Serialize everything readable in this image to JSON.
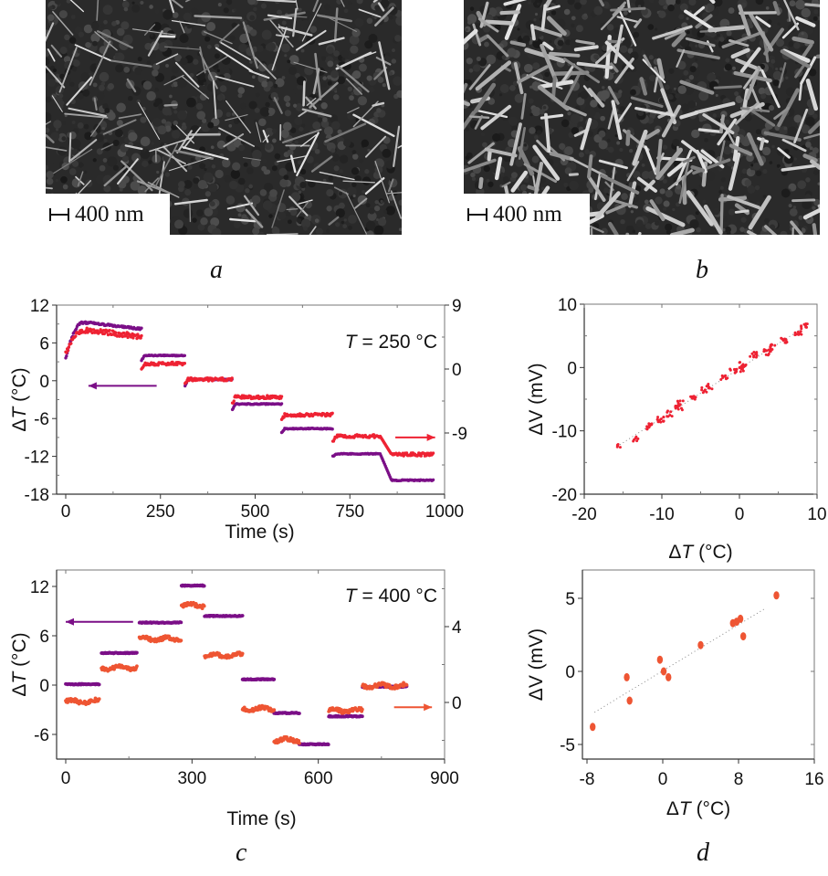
{
  "figure": {
    "panel_labels": [
      "a",
      "b",
      "c",
      "d"
    ],
    "sem_images": [
      {
        "panel": "a",
        "scale_bar": "400 nm",
        "description": "SEM image of nanowires (sparser, thin)"
      },
      {
        "panel": "b",
        "scale_bar": "400 nm",
        "description": "SEM image of nanowires (denser, thicker)"
      }
    ]
  },
  "colors": {
    "purple": "#7b0f87",
    "red": "#ee2233",
    "orange": "#ee5533",
    "axis": "#777777",
    "text": "#111111"
  },
  "chart_data": [
    {
      "id": "a",
      "type": "line",
      "annotation": "T = 250 °C",
      "annotation_italic_part": "T",
      "xlabel": "Time (s)",
      "ylabel": "ΔT (°C)",
      "ylabel_italic_part": "T",
      "xlim": [
        0,
        1000
      ],
      "xticks": [
        "0",
        "250",
        "500",
        "750",
        "1000"
      ],
      "xtick_values": [
        0,
        250,
        500,
        750,
        1000
      ],
      "ylim_left": [
        -18,
        12
      ],
      "yticks_left": [
        "12",
        "6",
        "0",
        "-6",
        "-12",
        "-18"
      ],
      "ytick_values_left": [
        12,
        6,
        0,
        -6,
        -12,
        -18
      ],
      "ylim_right": [
        -18,
        9
      ],
      "yticks_right": [
        "9",
        "0",
        "-9"
      ],
      "ytick_values_right": [
        9,
        0,
        -9
      ],
      "arrows": [
        {
          "series": "ΔT",
          "direction": "left",
          "x_from": 240,
          "x_to": 60,
          "y": -0.8
        },
        {
          "series": "ΔV",
          "direction": "right",
          "x_from": 870,
          "x_to": 975,
          "y": -9
        }
      ],
      "series": [
        {
          "name": "ΔT",
          "axis": "left",
          "color_key": "purple",
          "steps": [
            {
              "t0": 0,
              "t1": 200,
              "shape": "rise",
              "start": 3.5,
              "level": 8.2
            },
            {
              "t0": 200,
              "t1": 315,
              "level": 4.0,
              "start": 3.2
            },
            {
              "t0": 315,
              "t1": 440,
              "level": 0.2,
              "start": -0.8
            },
            {
              "t0": 440,
              "t1": 570,
              "level": -3.7,
              "start": -4.6
            },
            {
              "t0": 570,
              "t1": 705,
              "level": -7.6,
              "start": -8.2
            },
            {
              "t0": 705,
              "t1": 830,
              "level": -11.6,
              "start": -12.0
            },
            {
              "t0": 830,
              "t1": 970,
              "level": -15.8,
              "start": -11.6
            }
          ]
        },
        {
          "name": "ΔV",
          "axis": "right",
          "color_key": "red",
          "steps": [
            {
              "t0": 0,
              "t1": 200,
              "shape": "rise",
              "start": 4.2,
              "level": 7.0
            },
            {
              "t0": 200,
              "t1": 315,
              "level": 2.7,
              "start": 1.8
            },
            {
              "t0": 315,
              "t1": 440,
              "level": 0.2,
              "start": -0.6
            },
            {
              "t0": 440,
              "t1": 570,
              "level": -2.6,
              "start": -3.5
            },
            {
              "t0": 570,
              "t1": 705,
              "level": -5.4,
              "start": -6.2
            },
            {
              "t0": 705,
              "t1": 830,
              "level": -8.8,
              "start": -9.6
            },
            {
              "t0": 830,
              "t1": 970,
              "level": -11.7,
              "start": -8.8
            }
          ]
        }
      ]
    },
    {
      "id": "b",
      "type": "scatter",
      "xlabel": "ΔT (°C)",
      "xlabel_italic_part": "T",
      "ylabel": "ΔV (mV)",
      "xlim": [
        -20,
        10
      ],
      "ylim": [
        -20,
        10
      ],
      "xticks": [
        "-20",
        "-10",
        "0",
        "10"
      ],
      "xtick_values": [
        -20,
        -10,
        0,
        10
      ],
      "yticks": [
        "10",
        "0",
        "-10",
        "-20"
      ],
      "ytick_values": [
        10,
        0,
        -10,
        -20
      ],
      "fit_line": {
        "x": [
          -15.8,
          8.5
        ],
        "y": [
          -12.5,
          6.5
        ]
      },
      "clusters": [
        {
          "x": -15.6,
          "y": -12.4
        },
        {
          "x": -13.5,
          "y": -11.3
        },
        {
          "x": -11.6,
          "y": -9.3
        },
        {
          "x": -10.2,
          "y": -8.2
        },
        {
          "x": -9.0,
          "y": -7.3
        },
        {
          "x": -7.8,
          "y": -6.3
        },
        {
          "x": -7.6,
          "y": -5.6
        },
        {
          "x": -6.0,
          "y": -4.8
        },
        {
          "x": -4.6,
          "y": -3.6
        },
        {
          "x": -3.8,
          "y": -3.0
        },
        {
          "x": -2.0,
          "y": -1.5
        },
        {
          "x": -0.8,
          "y": -0.6
        },
        {
          "x": 0.2,
          "y": -0.3
        },
        {
          "x": 0.4,
          "y": 0.4
        },
        {
          "x": 1.8,
          "y": 2.0
        },
        {
          "x": 3.6,
          "y": 2.4
        },
        {
          "x": 4.2,
          "y": 3.2
        },
        {
          "x": 5.8,
          "y": 4.3
        },
        {
          "x": 7.6,
          "y": 5.6
        },
        {
          "x": 8.3,
          "y": 6.5
        }
      ]
    },
    {
      "id": "c",
      "type": "line",
      "annotation": "T = 400 °C",
      "annotation_italic_part": "T",
      "xlabel": "Time (s)",
      "ylabel": "ΔT (°C)",
      "ylabel_italic_part": "T",
      "xlim": [
        0,
        900
      ],
      "xticks": [
        "0",
        "300",
        "600",
        "900"
      ],
      "xtick_values": [
        0,
        300,
        600,
        900
      ],
      "ylim_left": [
        -9,
        14
      ],
      "yticks_left": [
        "12",
        "6",
        "0",
        "-6"
      ],
      "ytick_values_left": [
        12,
        6,
        0,
        -6
      ],
      "ylim_right": [
        -3,
        8
      ],
      "yticks_right": [
        "4",
        "0"
      ],
      "ytick_values_right": [
        4,
        0
      ],
      "arrows": [
        {
          "series": "ΔT",
          "direction": "left",
          "x_from": 160,
          "x_to": 0,
          "y": 7.7
        },
        {
          "series": "ΔV",
          "direction": "right",
          "x_from": 780,
          "x_to": 870,
          "y": -2.7
        }
      ],
      "series": [
        {
          "name": "ΔT",
          "axis": "left",
          "color_key": "purple",
          "segments": [
            {
              "t0": 0,
              "t1": 80,
              "level": 0.1
            },
            {
              "t0": 85,
              "t1": 170,
              "level": 3.9
            },
            {
              "t0": 175,
              "t1": 275,
              "level": 7.6
            },
            {
              "t0": 275,
              "t1": 330,
              "level": 12.1
            },
            {
              "t0": 330,
              "t1": 420,
              "level": 8.4
            },
            {
              "t0": 420,
              "t1": 495,
              "level": 0.7
            },
            {
              "t0": 495,
              "t1": 555,
              "level": -3.4
            },
            {
              "t0": 555,
              "t1": 625,
              "level": -7.2
            },
            {
              "t0": 625,
              "t1": 705,
              "level": -3.8
            },
            {
              "t0": 705,
              "t1": 810,
              "level": -0.2
            }
          ]
        },
        {
          "name": "ΔV",
          "axis": "right",
          "color_key": "orange",
          "segments": [
            {
              "t0": 0,
              "t1": 80,
              "level": -2.0
            },
            {
              "t0": 85,
              "t1": 170,
              "level": 2.1
            },
            {
              "t0": 175,
              "t1": 275,
              "level": 5.6
            },
            {
              "t0": 275,
              "t1": 330,
              "level": 9.7
            },
            {
              "t0": 330,
              "t1": 420,
              "level": 3.6
            },
            {
              "t0": 420,
              "t1": 495,
              "level": -2.9
            },
            {
              "t0": 495,
              "t1": 555,
              "level": -6.7
            },
            {
              "t0": 625,
              "t1": 705,
              "level": -3.1
            },
            {
              "t0": 705,
              "t1": 810,
              "level": -0.1
            }
          ],
          "note": "ΔV levels expressed in left-axis ΔT units as drawn"
        }
      ]
    },
    {
      "id": "d",
      "type": "scatter",
      "xlabel": "ΔT (°C)",
      "xlabel_italic_part": "T",
      "ylabel": "ΔV (mV)",
      "xlim": [
        -8,
        16
      ],
      "ylim": [
        -6,
        7
      ],
      "xticks": [
        "-8",
        "0",
        "8",
        "16"
      ],
      "xtick_values": [
        -8,
        0,
        8,
        16
      ],
      "yticks": [
        "5",
        "0",
        "-5"
      ],
      "ytick_values": [
        5,
        0,
        -5
      ],
      "fit_line": {
        "x": [
          -7.2,
          10.8
        ],
        "y": [
          -2.8,
          4.3
        ]
      },
      "points": [
        {
          "x": -7.4,
          "y": -3.8
        },
        {
          "x": -3.8,
          "y": -0.4
        },
        {
          "x": -3.5,
          "y": -2.0
        },
        {
          "x": -0.3,
          "y": 0.8
        },
        {
          "x": 0.1,
          "y": 0.0
        },
        {
          "x": 0.6,
          "y": -0.4
        },
        {
          "x": 4.0,
          "y": 1.8
        },
        {
          "x": 7.4,
          "y": 3.3
        },
        {
          "x": 7.8,
          "y": 3.4
        },
        {
          "x": 8.2,
          "y": 3.6
        },
        {
          "x": 8.5,
          "y": 2.4
        },
        {
          "x": 12.0,
          "y": 5.2
        }
      ]
    }
  ]
}
